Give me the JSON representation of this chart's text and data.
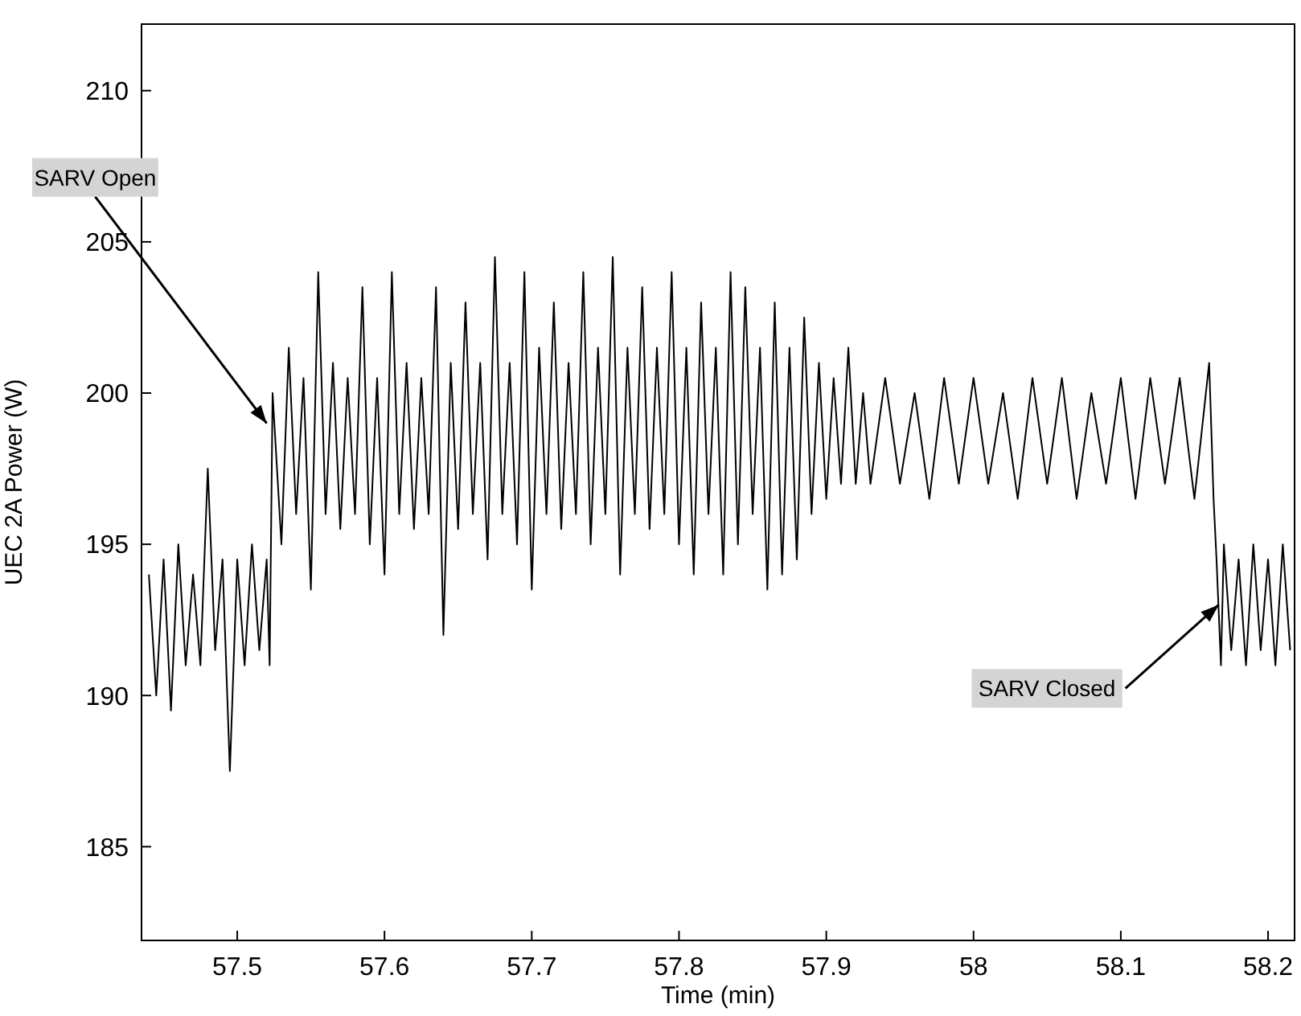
{
  "chart_data": {
    "type": "line",
    "xlabel": "Time (min)",
    "ylabel": "UEC 2A Power (W)",
    "xlim": [
      57.435,
      58.218
    ],
    "xticks": [
      57.5,
      57.6,
      57.7,
      57.8,
      57.9,
      {
        "value": 58,
        "label": "58"
      },
      58.1,
      58.2
    ],
    "ylim": [
      181.9,
      212.2
    ],
    "yticks": [
      185,
      190,
      195,
      200,
      205,
      210
    ],
    "grid": false,
    "marker": "none",
    "line_style": "solid",
    "annotations": [
      {
        "text": "SARV Open",
        "x": 57.52,
        "y": 199
      },
      {
        "text": "SARV Closed",
        "x": 58.1665,
        "y": 193
      }
    ],
    "series": [
      {
        "color": "#000000",
        "x": [
          57.44,
          57.445,
          57.45,
          57.455,
          57.46,
          57.465,
          57.47,
          57.475,
          57.48,
          57.485,
          57.49,
          57.495,
          57.5,
          57.505,
          57.51,
          57.515,
          57.52,
          57.522,
          57.524,
          57.53,
          57.535,
          57.54,
          57.545,
          57.55,
          57.555,
          57.56,
          57.565,
          57.57,
          57.575,
          57.58,
          57.585,
          57.59,
          57.595,
          57.6,
          57.605,
          57.61,
          57.615,
          57.62,
          57.625,
          57.63,
          57.635,
          57.64,
          57.645,
          57.65,
          57.655,
          57.66,
          57.665,
          57.67,
          57.675,
          57.68,
          57.685,
          57.69,
          57.695,
          57.7,
          57.705,
          57.71,
          57.715,
          57.72,
          57.725,
          57.73,
          57.735,
          57.74,
          57.745,
          57.75,
          57.755,
          57.76,
          57.765,
          57.77,
          57.775,
          57.78,
          57.785,
          57.79,
          57.795,
          57.8,
          57.805,
          57.81,
          57.815,
          57.82,
          57.825,
          57.83,
          57.835,
          57.84,
          57.845,
          57.85,
          57.855,
          57.86,
          57.865,
          57.87,
          57.875,
          57.88,
          57.885,
          57.89,
          57.895,
          57.9,
          57.905,
          57.91,
          57.915,
          57.92,
          57.925,
          57.93,
          57.94,
          57.95,
          57.96,
          57.97,
          57.98,
          57.99,
          58.0,
          58.01,
          58.02,
          58.03,
          58.04,
          58.05,
          58.06,
          58.07,
          58.08,
          58.09,
          58.1,
          58.11,
          58.12,
          58.13,
          58.14,
          58.15,
          58.16,
          58.163,
          58.165,
          58.168,
          58.17,
          58.175,
          58.18,
          58.185,
          58.19,
          58.195,
          58.2,
          58.205,
          58.21,
          58.215
        ],
        "values": [
          194,
          190,
          194.5,
          189.5,
          195,
          191,
          194,
          191,
          197.5,
          191.5,
          194.5,
          187.5,
          194.5,
          191,
          195,
          191.5,
          194.5,
          191,
          200,
          195,
          201.5,
          196,
          200.5,
          193.5,
          204,
          196,
          201,
          195.5,
          200.5,
          196,
          203.5,
          195,
          200.5,
          194,
          204,
          196,
          201,
          195.5,
          200.5,
          196,
          203.5,
          192,
          201,
          195.5,
          203,
          196,
          201,
          194.5,
          204.5,
          196,
          201,
          195,
          204,
          193.5,
          201.5,
          196,
          203,
          195.5,
          201,
          196,
          204,
          195,
          201.5,
          196,
          204.5,
          194,
          201.5,
          196,
          203.5,
          195.5,
          201.5,
          196,
          204,
          195,
          201.5,
          194,
          203,
          196,
          201.5,
          194,
          204,
          195,
          203.5,
          196,
          201.5,
          193.5,
          203,
          194,
          201.5,
          194.5,
          202.5,
          196,
          201,
          196.5,
          200.5,
          197,
          201.5,
          197,
          200,
          197,
          200.5,
          197,
          200,
          196.5,
          200.5,
          197,
          200.5,
          197,
          200,
          196.5,
          200.5,
          197,
          200.5,
          196.5,
          200,
          197,
          200.5,
          196.5,
          200.5,
          197,
          200.5,
          196.5,
          201,
          196.5,
          194.5,
          191,
          195,
          191.5,
          194.5,
          191,
          195,
          191.5,
          194.5,
          191,
          195,
          191.5
        ]
      }
    ]
  }
}
